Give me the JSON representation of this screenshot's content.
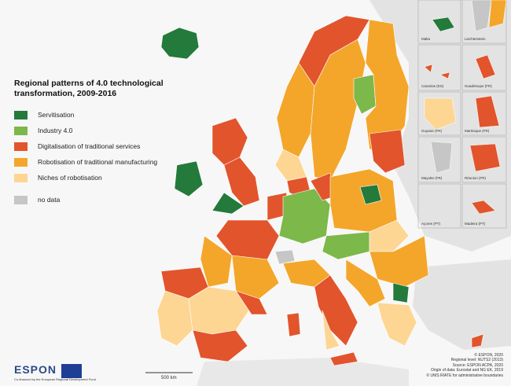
{
  "header": {
    "title": "Regional patterns of 4.0 technological transformation, 2009-2016"
  },
  "legend": {
    "items": [
      {
        "label": "Servitisation",
        "color": "#237a3b"
      },
      {
        "label": "Industry 4.0",
        "color": "#7db84a"
      },
      {
        "label": "Digitalisation of traditional services",
        "color": "#e2542c"
      },
      {
        "label": "Robotisation of traditional manufacturing",
        "color": "#f4a62a"
      },
      {
        "label": "Niches of robotisation",
        "color": "#fdd694"
      },
      {
        "label": "no data",
        "color": "#c6c6c6"
      }
    ]
  },
  "insets": [
    "Malta",
    "Liechtenstein",
    "Canarias (ES)",
    "Guadeloupe (FR)",
    "Guyane (FR)",
    "Martinique (FR)",
    "Mayotte (FR)",
    "Réunion (FR)",
    "Açores (PT)",
    "Madeira (PT)"
  ],
  "scale": "500 km",
  "credits": [
    "© ESPON, 2020",
    "Regional level: NUTS2 (2013)",
    "Source: ESPON ACPA, 2020",
    "Origin of data: Eurostat and NG EK, 2019",
    "© UMS RIATE for administrative boundaries"
  ],
  "logo": {
    "name": "ESPON",
    "funding": "Co-financed by the European Regional Development Fund"
  }
}
